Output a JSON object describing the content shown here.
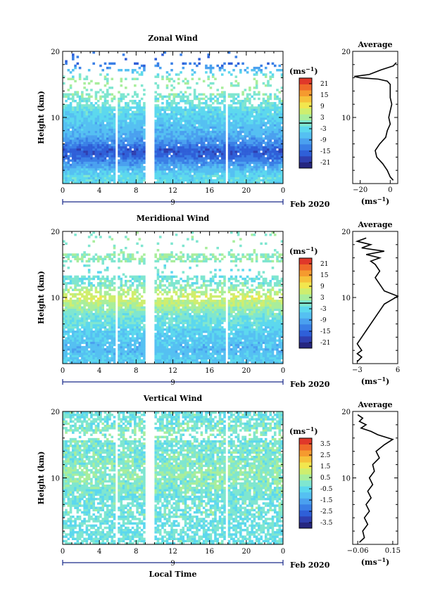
{
  "colors": {
    "scale": [
      "#262680",
      "#2f3fb0",
      "#2f5fd8",
      "#3a7fe6",
      "#4aa0ef",
      "#55c0f2",
      "#5cd8ee",
      "#7fe6d0",
      "#a8ee9c",
      "#cfee6e",
      "#f2e64e",
      "#f6c23a",
      "#f59a2f",
      "#ef6a2a",
      "#e0382a"
    ],
    "axis": "#000000",
    "gap": "#ffffff"
  },
  "chart_data": [
    {
      "type": "heatmap",
      "title": "Zonal Wind",
      "ylabel": "Height (km)",
      "xlabel": "",
      "xlim": [
        0,
        24
      ],
      "ylim": [
        0,
        20
      ],
      "xticks": [
        "0",
        "4",
        "8",
        "12",
        "16",
        "20",
        "0"
      ],
      "yticks": [
        "10",
        "20"
      ],
      "date_tick": "9",
      "date_label": "Feb 2020",
      "data_gaps_hours": [
        [
          5.8,
          6.1
        ],
        [
          8.9,
          9.9
        ],
        [
          17.8,
          18.1
        ]
      ],
      "field_profile": [
        {
          "height": 1,
          "value": -3
        },
        {
          "height": 2,
          "value": -6
        },
        {
          "height": 3,
          "value": -10
        },
        {
          "height": 4,
          "value": -15
        },
        {
          "height": 5,
          "value": -17
        },
        {
          "height": 6,
          "value": -12
        },
        {
          "height": 7,
          "value": -9
        },
        {
          "height": 8,
          "value": -7
        },
        {
          "height": 9,
          "value": -6
        },
        {
          "height": 10,
          "value": -4
        },
        {
          "height": 11,
          "value": -3
        },
        {
          "height": 12,
          "value": -1
        },
        {
          "height": 13,
          "value": 0
        },
        {
          "height": 14,
          "value": 1
        },
        {
          "height": 15,
          "value": 1
        },
        {
          "height": 16,
          "value": 2
        },
        {
          "height": 17,
          "value": -6
        },
        {
          "height": 18,
          "value": -14
        }
      ],
      "colorbar": {
        "unit": "(ms",
        "unit_exponent": "−1",
        "unit_close": ")",
        "ticks": [
          "21",
          "15",
          "9",
          "3",
          "-3",
          "-9",
          "-15",
          "-21"
        ],
        "range": [
          -24,
          24
        ],
        "zero_line": 0
      },
      "average": {
        "title": "Average",
        "xticks": [
          "−20",
          "0"
        ],
        "xlim": [
          -25,
          5
        ],
        "xlabel": "(ms",
        "xlabel_exponent": "−1",
        "xlabel_close": ")",
        "yticks": [
          "10",
          "20"
        ],
        "ylim": [
          0,
          20
        ],
        "profile": [
          {
            "height": 0.5,
            "value": 2
          },
          {
            "height": 1,
            "value": 0
          },
          {
            "height": 2,
            "value": -2
          },
          {
            "height": 3,
            "value": -5
          },
          {
            "height": 4,
            "value": -9
          },
          {
            "height": 5,
            "value": -10
          },
          {
            "height": 6,
            "value": -7
          },
          {
            "height": 7,
            "value": -3
          },
          {
            "height": 8,
            "value": -2
          },
          {
            "height": 9,
            "value": 0
          },
          {
            "height": 10,
            "value": -1
          },
          {
            "height": 11,
            "value": 0
          },
          {
            "height": 12,
            "value": 1
          },
          {
            "height": 13,
            "value": 0
          },
          {
            "height": 14,
            "value": 0
          },
          {
            "height": 15,
            "value": 0
          },
          {
            "height": 15.5,
            "value": -2
          },
          {
            "height": 15.8,
            "value": -8
          },
          {
            "height": 16,
            "value": -20
          },
          {
            "height": 16.2,
            "value": -24
          },
          {
            "height": 16.5,
            "value": -14
          },
          {
            "height": 17.2,
            "value": -6
          },
          {
            "height": 17.8,
            "value": 2
          },
          {
            "height": 18.3,
            "value": 4
          }
        ]
      }
    },
    {
      "type": "heatmap",
      "title": "Meridional Wind",
      "ylabel": "Height (km)",
      "xlabel": "",
      "xlim": [
        0,
        24
      ],
      "ylim": [
        0,
        20
      ],
      "xticks": [
        "0",
        "4",
        "8",
        "12",
        "16",
        "20",
        "0"
      ],
      "yticks": [
        "10",
        "20"
      ],
      "date_tick": "9",
      "date_label": "Feb 2020",
      "data_gaps_hours": [
        [
          5.8,
          6.1
        ],
        [
          8.9,
          9.9
        ],
        [
          17.8,
          18.1
        ]
      ],
      "field_profile": [
        {
          "height": 1,
          "value": -5
        },
        {
          "height": 2,
          "value": -7
        },
        {
          "height": 3,
          "value": -6
        },
        {
          "height": 4,
          "value": -5
        },
        {
          "height": 5,
          "value": -4
        },
        {
          "height": 6,
          "value": -2
        },
        {
          "height": 7,
          "value": -1
        },
        {
          "height": 8,
          "value": 1
        },
        {
          "height": 9,
          "value": 4
        },
        {
          "height": 10,
          "value": 7
        },
        {
          "height": 11,
          "value": 4
        },
        {
          "height": 12,
          "value": 0
        },
        {
          "height": 13,
          "value": -1
        },
        {
          "height": 14,
          "value": -2
        },
        {
          "height": 15,
          "value": 0
        },
        {
          "height": 16,
          "value": 2
        },
        {
          "height": 17,
          "value": 1
        }
      ],
      "colorbar": {
        "unit": "(ms",
        "unit_exponent": "−1",
        "unit_close": ")",
        "ticks": [
          "21",
          "15",
          "9",
          "3",
          "-3",
          "-9",
          "-15",
          "-21"
        ],
        "range": [
          -24,
          24
        ],
        "zero_line": 0
      },
      "average": {
        "title": "Average",
        "xticks": [
          "−3",
          "6"
        ],
        "xlim": [
          -4,
          6
        ],
        "xlabel": "(ms",
        "xlabel_exponent": "−1",
        "xlabel_close": ")",
        "yticks": [
          "10",
          "20"
        ],
        "ylim": [
          0,
          20
        ],
        "profile": [
          {
            "height": 0.3,
            "value": -3
          },
          {
            "height": 1,
            "value": -2
          },
          {
            "height": 1.5,
            "value": -3
          },
          {
            "height": 2,
            "value": -2
          },
          {
            "height": 3,
            "value": -3
          },
          {
            "height": 4,
            "value": -2
          },
          {
            "height": 5,
            "value": -1
          },
          {
            "height": 6,
            "value": 0
          },
          {
            "height": 7,
            "value": 1
          },
          {
            "height": 8,
            "value": 2
          },
          {
            "height": 9,
            "value": 3
          },
          {
            "height": 9.8,
            "value": 5
          },
          {
            "height": 10.2,
            "value": 6
          },
          {
            "height": 11,
            "value": 3
          },
          {
            "height": 12,
            "value": 2
          },
          {
            "height": 13,
            "value": 1
          },
          {
            "height": 14,
            "value": 2
          },
          {
            "height": 15,
            "value": 1
          },
          {
            "height": 15.5,
            "value": 0
          },
          {
            "height": 16,
            "value": 2
          },
          {
            "height": 16.5,
            "value": -1
          },
          {
            "height": 17,
            "value": 3
          },
          {
            "height": 17.5,
            "value": -2
          },
          {
            "height": 18,
            "value": 0
          },
          {
            "height": 18.5,
            "value": -3
          },
          {
            "height": 19,
            "value": -1
          }
        ]
      }
    },
    {
      "type": "heatmap",
      "title": "Vertical Wind",
      "ylabel": "Height (km)",
      "xlabel": "Local Time",
      "xlim": [
        0,
        24
      ],
      "ylim": [
        0,
        20
      ],
      "xticks": [
        "0",
        "4",
        "8",
        "12",
        "16",
        "20",
        "0"
      ],
      "yticks": [
        "10",
        "20"
      ],
      "date_tick": "9",
      "date_label": "Feb 2020",
      "data_gaps_hours": [
        [
          5.8,
          6.1
        ],
        [
          8.9,
          9.9
        ],
        [
          17.8,
          18.1
        ]
      ],
      "field_profile": [
        {
          "height": 1,
          "value": -0.2
        },
        {
          "height": 3,
          "value": -0.3
        },
        {
          "height": 5,
          "value": -0.1
        },
        {
          "height": 7,
          "value": -0.2
        },
        {
          "height": 9,
          "value": 0.1
        },
        {
          "height": 11,
          "value": 0.2
        },
        {
          "height": 13,
          "value": 0.0
        },
        {
          "height": 15,
          "value": -0.1
        },
        {
          "height": 17,
          "value": 0.1
        },
        {
          "height": 19,
          "value": -0.2
        }
      ],
      "colorbar": {
        "unit": "(ms",
        "unit_exponent": "−1",
        "unit_close": ")",
        "ticks": [
          "3.5",
          "2.5",
          "1.5",
          "0.5",
          "-0.5",
          "-1.5",
          "-2.5",
          "-3.5"
        ],
        "range": [
          -4,
          4
        ],
        "zero_line": null
      },
      "average": {
        "title": "Average",
        "xticks": [
          "−0.06",
          "0.15"
        ],
        "xlim": [
          -0.09,
          0.18
        ],
        "xlabel": "(ms",
        "xlabel_exponent": "−1",
        "xlabel_close": ")",
        "yticks": [
          "10",
          "20"
        ],
        "ylim": [
          0,
          20
        ],
        "profile": [
          {
            "height": 0.3,
            "value": -0.05
          },
          {
            "height": 1,
            "value": -0.02
          },
          {
            "height": 2,
            "value": -0.03
          },
          {
            "height": 3,
            "value": 0.0
          },
          {
            "height": 4,
            "value": -0.02
          },
          {
            "height": 5,
            "value": 0.01
          },
          {
            "height": 6,
            "value": -0.01
          },
          {
            "height": 7,
            "value": 0.02
          },
          {
            "height": 8,
            "value": 0.0
          },
          {
            "height": 9,
            "value": 0.03
          },
          {
            "height": 10,
            "value": 0.01
          },
          {
            "height": 11,
            "value": 0.04
          },
          {
            "height": 12,
            "value": 0.03
          },
          {
            "height": 13,
            "value": 0.07
          },
          {
            "height": 14,
            "value": 0.05
          },
          {
            "height": 15,
            "value": 0.1
          },
          {
            "height": 15.8,
            "value": 0.15
          },
          {
            "height": 16.5,
            "value": 0.06
          },
          {
            "height": 17,
            "value": 0.02
          },
          {
            "height": 17.5,
            "value": -0.04
          },
          {
            "height": 18,
            "value": -0.01
          },
          {
            "height": 18.5,
            "value": -0.05
          },
          {
            "height": 19,
            "value": -0.03
          },
          {
            "height": 19.5,
            "value": -0.06
          }
        ]
      }
    }
  ]
}
